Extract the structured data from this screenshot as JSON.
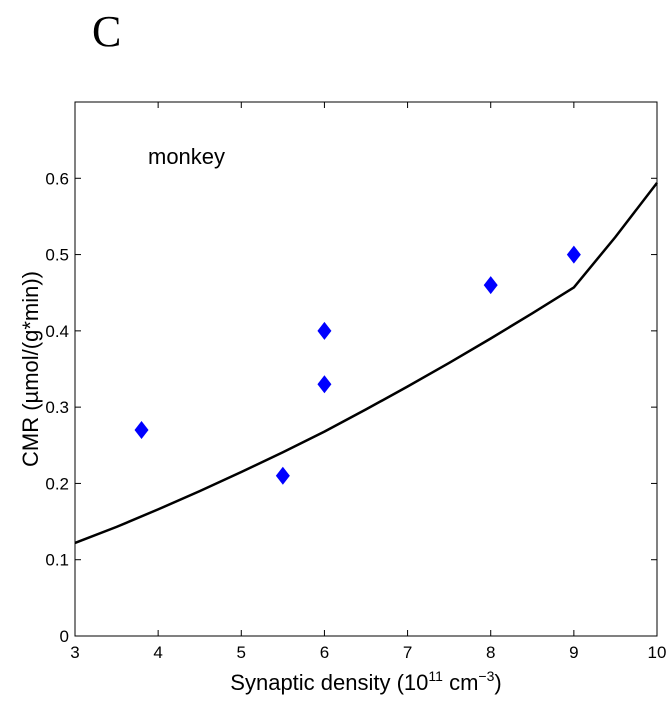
{
  "panel_label": "C",
  "chart_data": {
    "type": "scatter",
    "annotation": "monkey",
    "xlabel": "Synaptic density (10^11 cm^-3)",
    "xlabel_parts": {
      "main": "Synaptic  density  (10",
      "sup1": "11",
      "mid": " cm",
      "sup2": "−3",
      "end": ")"
    },
    "ylabel": "CMR  (µmol/(g*min))",
    "xlim": [
      3,
      10
    ],
    "ylim": [
      0,
      0.7
    ],
    "xticks": [
      3,
      4,
      5,
      6,
      7,
      8,
      9,
      10
    ],
    "yticks": [
      0,
      0.1,
      0.2,
      0.3,
      0.4,
      0.5,
      0.6
    ],
    "ytick_labels": [
      "0",
      "0.1",
      "0.2",
      "0.3",
      "0.4",
      "0.5",
      "0.6"
    ],
    "series": [
      {
        "type": "scatter",
        "marker": "diamond",
        "color": "#0000ff",
        "x": [
          3.8,
          5.5,
          6.0,
          6.0,
          8.0,
          9.0
        ],
        "y": [
          0.27,
          0.21,
          0.33,
          0.4,
          0.46,
          0.5
        ]
      },
      {
        "type": "line",
        "color": "#000000",
        "x": [
          3.0,
          3.5,
          4.0,
          4.5,
          5.0,
          5.5,
          6.0,
          6.5,
          7.0,
          7.5,
          8.0,
          8.5,
          9.0,
          9.5,
          10.0
        ],
        "y": [
          0.122,
          0.143,
          0.166,
          0.19,
          0.215,
          0.241,
          0.268,
          0.297,
          0.327,
          0.358,
          0.39,
          0.423,
          0.457,
          0.523,
          0.594
        ]
      }
    ],
    "grid": false,
    "legend": "none"
  }
}
